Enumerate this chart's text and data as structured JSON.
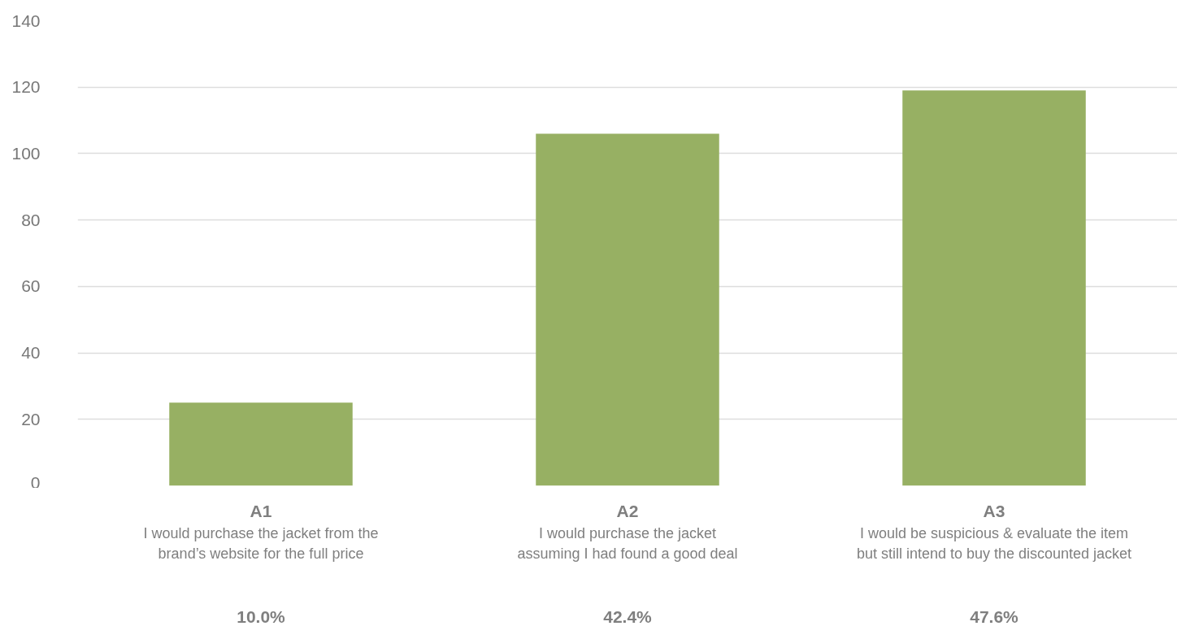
{
  "chart_data": {
    "type": "bar",
    "categories": [
      "A1\nI would purchase the jacket from the\nbrand’s website for the full price",
      "A2\nI would purchase the jacket\nassuming I had found a good deal",
      "A3\nI would be suspicious & evaluate the item\nbut still intend to buy the discounted jacket"
    ],
    "values": [
      25,
      106,
      119
    ],
    "color": "#97b063",
    "annotations": [
      "10.0%",
      "42.4%",
      "47.6%"
    ],
    "ylim": [
      0,
      140
    ],
    "yticks": [
      0,
      20,
      40,
      60,
      80,
      100,
      120,
      140
    ],
    "grid": "y"
  }
}
